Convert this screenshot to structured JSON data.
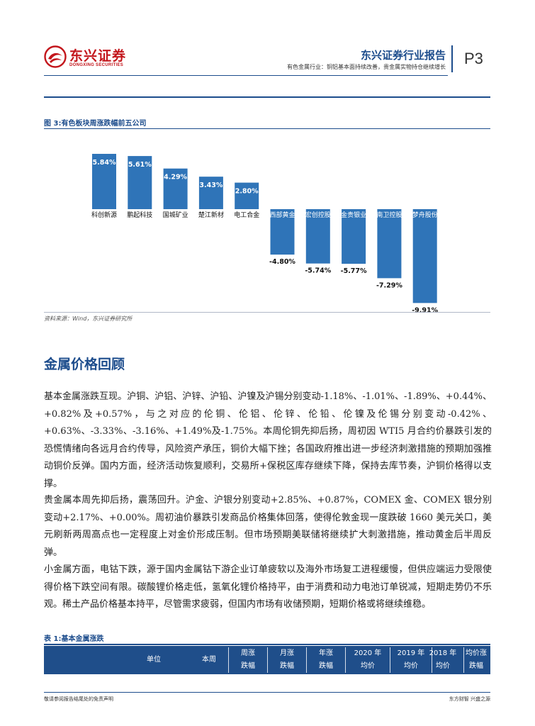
{
  "header": {
    "logo_cn": "东兴证券",
    "logo_en": "DONGXING SECURITIES",
    "title": "东兴证券行业报告",
    "subtitle": "有色金属行业：铜铝基本面持续改善，贵金属实物持仓继续增长",
    "page": "P3"
  },
  "figure": {
    "title": "图 3:有色板块周涨跌幅前五公司",
    "source": "资料来源：Wind，东兴证券研究所"
  },
  "chart_data": {
    "type": "bar",
    "categories": [
      "科创新源",
      "鹏起科技",
      "国城矿业",
      "楚江新材",
      "电工合金",
      "西部黄金",
      "宏创控股",
      "金贵银业",
      "南卫控股",
      "梦舟股份"
    ],
    "values": [
      5.84,
      5.61,
      4.29,
      3.43,
      2.8,
      -4.8,
      -5.74,
      -5.77,
      -7.29,
      -9.91
    ],
    "value_labels": [
      "5.84%",
      "5.61%",
      "4.29%",
      "3.43%",
      "2.80%",
      "-4.80%",
      "-5.74%",
      "-5.77%",
      "-7.29%",
      "-9.91%"
    ],
    "title": "",
    "xlabel": "",
    "ylabel": "",
    "ylim": [
      -10,
      6.5
    ],
    "grid": false,
    "bar_color": "#2f74b8"
  },
  "section": {
    "heading": "金属价格回顾",
    "paragraphs": [
      "基本金属涨跌互现。沪铜、沪铝、沪锌、沪铅、沪镍及沪锡分别变动-1.18%、-1.01%、-1.89%、+0.44%、+0.82%及+0.57%，与之对应的伦铜、伦铝、伦锌、伦铅、伦镍及伦锡分别变动-0.42%、+0.63%、-3.33%、-3.16%、+1.49%及-1.75%。本周伦铜先抑后扬，周初因 WTI5 月合约价暴跌引发的恐慌情绪向各远月合约传导，风险资产承压，铜价大幅下挫；各国政府推出进一步经济刺激措施的预期加强推动铜价反弹。国内方面，经济活动恢复顺利，交易所+保税区库存继续下降，保持去库节奏，沪铜价格得以支撑。",
      "贵金属本周先抑后扬，震荡回升。沪金、沪银分别变动+2.85%、+0.87%，COMEX 金、COMEX 银分别变动+2.17%、+0.00%。周初油价暴跌引发商品价格集体回落，使得伦敦金现一度跌破 1660 美元关口，美元刷新两周高点也一定程度上对金价形成压制。但市场预期美联储将继续扩大刺激措施，推动黄金后半周反弹。",
      "小金属方面，电钴下跌，源于国内金属钴下游企业订单疲软以及海外市场复工进程缓慢，但供应端运力受限使得价格下跌空间有限。碳酸锂价格走低，氢氧化锂价格持平，由于消费和动力电池订单锐减，短期走势仍不乐观。稀土产品价格基本持平，尽管需求疲弱，但国内市场有收储预期，短期价格或将继续维稳。"
    ]
  },
  "table": {
    "title": "表 1:基本金属涨跌",
    "headers": [
      {
        "line1": "单位",
        "line2": ""
      },
      {
        "line1": "本周",
        "line2": ""
      },
      {
        "line1": "周涨",
        "line2": "跌幅"
      },
      {
        "line1": "月涨",
        "line2": "跌幅"
      },
      {
        "line1": "年涨",
        "line2": "跌幅"
      },
      {
        "line1": "2020 年",
        "line2": "均价"
      },
      {
        "line1": "2019 年",
        "line2": "均价"
      },
      {
        "line1": "2018 年",
        "line2": "均价"
      },
      {
        "line1": "均价涨",
        "line2": "跌幅"
      }
    ]
  },
  "footer": {
    "left": "敬请参阅报告结尾处的免责声明",
    "right": "东方财智  兴盛之源"
  }
}
